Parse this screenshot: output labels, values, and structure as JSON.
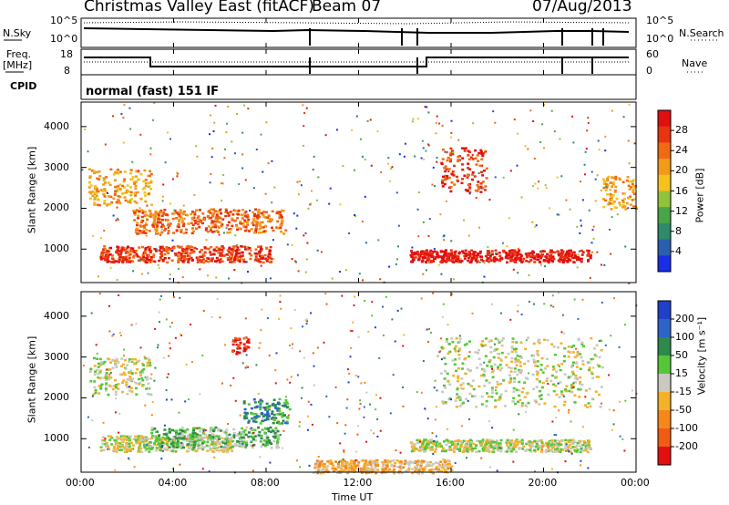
{
  "header": {
    "station": "Christmas Valley East (fitACF)",
    "beam": "Beam 07",
    "date": "07/Aug/2013"
  },
  "status_panel": {
    "nsky_label": "N.Sky",
    "nsky_ticks": [
      "10^5",
      "10^0"
    ],
    "nsearch_label": "N.Search",
    "nsearch_ticks": [
      "10^5",
      "10^0"
    ],
    "freq_label_line1": "Freq.",
    "freq_label_line2": "[MHz]",
    "freq_ticks": [
      "18",
      "8"
    ],
    "nave_label": "Nave",
    "nave_ticks": [
      "60",
      "0"
    ],
    "cpid_label": "CPID",
    "cpid_text": "normal (fast) 151 IF"
  },
  "colors": {
    "power_scale": [
      "#1a2ee6",
      "#2a5fb0",
      "#2e8a6a",
      "#4aa548",
      "#8fc43a",
      "#f4c21b",
      "#f39a1a",
      "#f06a14",
      "#e8340f",
      "#e01010"
    ],
    "velocity_scale": [
      "#2040c8",
      "#2e64c8",
      "#2e8a4a",
      "#55c638",
      "#c9c9c0",
      "#f6b12a",
      "#f6871a",
      "#f05c12",
      "#e21010"
    ]
  },
  "chart_data": [
    {
      "type": "heatmap",
      "panel": "power",
      "ylabel": "Slant Range [km]",
      "colorbar_label": "Power [dB]",
      "colorbar_ticks": [
        "4",
        "8",
        "12",
        "16",
        "20",
        "24",
        "28"
      ],
      "yticks": [
        "1000",
        "2000",
        "3000",
        "4000"
      ],
      "ylim": [
        180,
        4600
      ],
      "xlim": [
        0,
        24
      ],
      "features": [
        {
          "t0": 0.3,
          "t1": 3.0,
          "r0": 2100,
          "r1": 3000,
          "level": 6
        },
        {
          "t0": 0.8,
          "t1": 8.2,
          "r0": 700,
          "r1": 1100,
          "level": 8
        },
        {
          "t0": 2.2,
          "t1": 8.8,
          "r0": 1400,
          "r1": 2000,
          "level": 7
        },
        {
          "t0": 14.2,
          "t1": 22.0,
          "r0": 700,
          "r1": 1000,
          "level": 9
        },
        {
          "t0": 15.5,
          "t1": 17.5,
          "r0": 2400,
          "r1": 3500,
          "level": 8
        },
        {
          "t0": 22.5,
          "t1": 24.0,
          "r0": 2000,
          "r1": 2800,
          "level": 6
        }
      ]
    },
    {
      "type": "heatmap",
      "panel": "velocity",
      "ylabel": "Slant Range [km]",
      "colorbar_label": "Velocity [m s⁻¹]",
      "colorbar_ticks": [
        "200",
        "100",
        "50",
        "15",
        "-15",
        "-50",
        "-100",
        "-200"
      ],
      "yticks": [
        "1000",
        "2000",
        "3000",
        "4000"
      ],
      "ylim": [
        180,
        4600
      ],
      "xlim": [
        0,
        24
      ],
      "features": [
        {
          "t0": 0.3,
          "t1": 3.0,
          "r0": 2100,
          "r1": 3000,
          "level": 4
        },
        {
          "t0": 0.8,
          "t1": 6.5,
          "r0": 700,
          "r1": 1100,
          "level": 4
        },
        {
          "t0": 3.0,
          "t1": 8.5,
          "r0": 800,
          "r1": 1300,
          "level": 3
        },
        {
          "t0": 6.5,
          "t1": 7.2,
          "r0": 3100,
          "r1": 3500,
          "level": 8
        },
        {
          "t0": 7.0,
          "t1": 9.0,
          "r0": 1400,
          "r1": 2000,
          "level": 2
        },
        {
          "t0": 10.0,
          "t1": 16.0,
          "r0": 180,
          "r1": 500,
          "level": 5
        },
        {
          "t0": 14.2,
          "t1": 22.0,
          "r0": 700,
          "r1": 1000,
          "level": 4
        },
        {
          "t0": 15.5,
          "t1": 22.5,
          "r0": 1800,
          "r1": 3500,
          "level": 4
        }
      ]
    }
  ],
  "xaxis": {
    "ticks": [
      "00:00",
      "04:00",
      "08:00",
      "12:00",
      "16:00",
      "20:00",
      "00:00"
    ],
    "label": "Time UT"
  }
}
